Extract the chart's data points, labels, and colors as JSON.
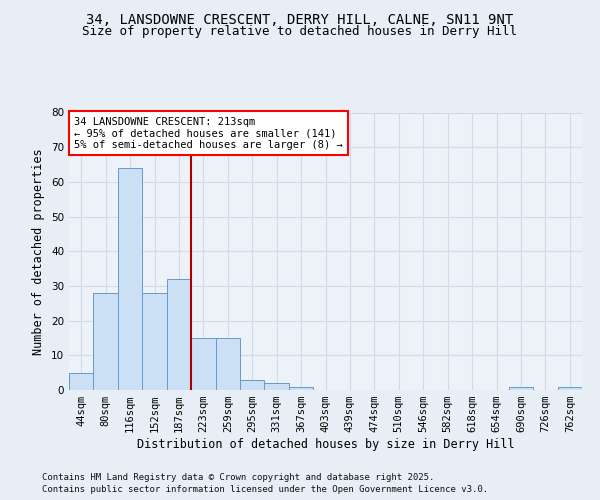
{
  "title_line1": "34, LANSDOWNE CRESCENT, DERRY HILL, CALNE, SN11 9NT",
  "title_line2": "Size of property relative to detached houses in Derry Hill",
  "xlabel": "Distribution of detached houses by size in Derry Hill",
  "ylabel": "Number of detached properties",
  "categories": [
    "44sqm",
    "80sqm",
    "116sqm",
    "152sqm",
    "187sqm",
    "223sqm",
    "259sqm",
    "295sqm",
    "331sqm",
    "367sqm",
    "403sqm",
    "439sqm",
    "474sqm",
    "510sqm",
    "546sqm",
    "582sqm",
    "618sqm",
    "654sqm",
    "690sqm",
    "726sqm",
    "762sqm"
  ],
  "values": [
    5,
    28,
    64,
    28,
    32,
    15,
    15,
    3,
    2,
    1,
    0,
    0,
    0,
    0,
    0,
    0,
    0,
    0,
    1,
    0,
    1
  ],
  "bar_color": "#cce0f5",
  "bar_edge_color": "#6699cc",
  "red_line_x": 4.5,
  "ylim": [
    0,
    80
  ],
  "yticks": [
    0,
    10,
    20,
    30,
    40,
    50,
    60,
    70,
    80
  ],
  "ann_line1": "34 LANSDOWNE CRESCENT: 213sqm",
  "ann_line2": "← 95% of detached houses are smaller (141)",
  "ann_line3": "5% of semi-detached houses are larger (8) →",
  "footer_line1": "Contains HM Land Registry data © Crown copyright and database right 2025.",
  "footer_line2": "Contains public sector information licensed under the Open Government Licence v3.0.",
  "bg_color": "#e8eef5",
  "plot_bg_color": "#edf2f8",
  "grid_color": "#d0dae8",
  "title_fontsize": 10,
  "subtitle_fontsize": 9,
  "axis_label_fontsize": 8.5,
  "tick_fontsize": 7.5,
  "annotation_fontsize": 7.5,
  "footer_fontsize": 6.5
}
